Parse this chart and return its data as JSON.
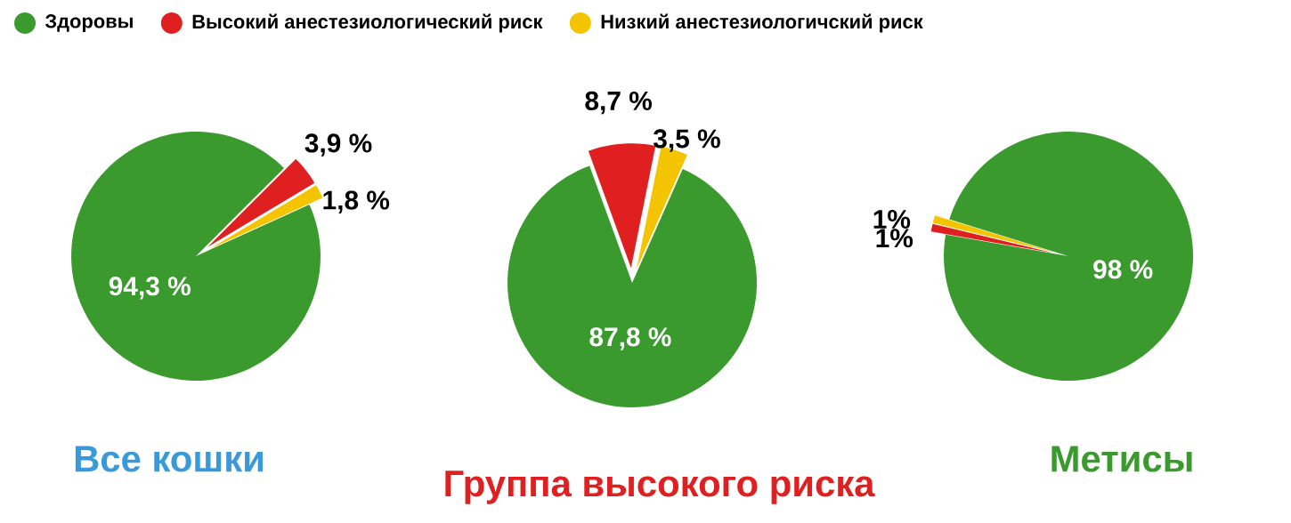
{
  "chart_data": [
    {
      "type": "pie",
      "title": "Все кошки",
      "categories": [
        "Здоровы",
        "Высокий анестезиологический риск",
        "Низкий анестезиологичский риск"
      ],
      "values": [
        94.3,
        3.9,
        1.8
      ],
      "colors": [
        "#3a9a2e",
        "#e02020",
        "#f5c400"
      ],
      "value_labels": [
        "94,3 %",
        "3,9 %",
        "1,8 %"
      ],
      "legend": "top"
    },
    {
      "type": "pie",
      "title": "Группа высокого риска",
      "categories": [
        null,
        null,
        null
      ],
      "values": [
        87.8,
        8.7,
        3.5
      ],
      "colors": [
        "#3a9a2e",
        "#e02020",
        "#f5c400"
      ],
      "value_labels": [
        "87,8 %",
        "8,7 %",
        "3,5 %"
      ]
    },
    {
      "type": "pie",
      "title": "Метисы",
      "categories": [
        null,
        null,
        null
      ],
      "values": [
        98,
        1,
        1
      ],
      "colors": [
        "#3a9a2e",
        "#e02020",
        "#f5c400"
      ],
      "value_labels": [
        "98 %",
        "1%",
        "1%"
      ]
    }
  ]
}
